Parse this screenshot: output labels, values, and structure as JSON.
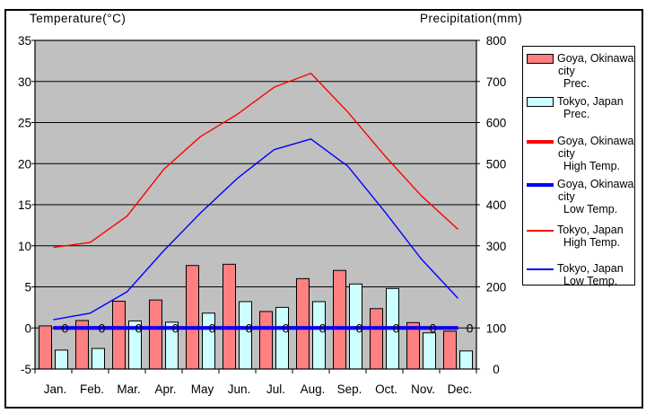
{
  "page": {
    "temp_axis_title": "Temperature(°C)",
    "precip_axis_title": "Precipitation(mm)"
  },
  "colors": {
    "goya_prec_bar": "#FF8080",
    "tokyo_prec_bar": "#CCFFFF",
    "high_temp_line": "#FF0000",
    "low_temp_line": "#0000FF",
    "plot_background": "#C0C0C0",
    "axis_and_text": "#000000",
    "legend_background": "#FFFFFF"
  },
  "legend": {
    "entries": [
      {
        "swatch": "goya-prec-swatch",
        "line1": "Goya, Okinawa",
        "line2": "city",
        "line3": "Prec."
      },
      {
        "swatch": "tokyo-prec-swatch",
        "line1": "Tokyo, Japan",
        "line2": "Prec.",
        "line3": ""
      },
      {
        "swatch": "goya-high-swatch",
        "line1": "Goya, Okinawa",
        "line2": "city",
        "line3": "High Temp."
      },
      {
        "swatch": "goya-low-swatch",
        "line1": "Goya, Okinawa",
        "line2": "city",
        "line3": "Low Temp."
      },
      {
        "swatch": "tokyo-high-swatch",
        "line1": "Tokyo, Japan",
        "line2": "High Temp.",
        "line3": ""
      },
      {
        "swatch": "tokyo-low-swatch",
        "line1": "Tokyo, Japan",
        "line2": "Low Temp.",
        "line3": ""
      }
    ]
  },
  "chart_data": {
    "type": "bar+line combo climate chart",
    "categories": [
      "Jan.",
      "Feb.",
      "Mar.",
      "Apr.",
      "May",
      "Jun.",
      "Jul.",
      "Aug.",
      "Sep.",
      "Oct.",
      "Nov.",
      "Dec."
    ],
    "series": [
      {
        "name": "Goya, Okinawa city Prec.",
        "type": "bar",
        "axis": "precip",
        "color": "#FF8080",
        "values": [
          105,
          118,
          165,
          168,
          252,
          255,
          140,
          220,
          240,
          147,
          113,
          92
        ]
      },
      {
        "name": "Tokyo, Japan Prec.",
        "type": "bar",
        "axis": "precip",
        "color": "#CCFFFF",
        "values": [
          46,
          50,
          117,
          114,
          136,
          164,
          150,
          164,
          207,
          196,
          88,
          44
        ]
      },
      {
        "name": "Goya, Okinawa city High Temp.",
        "type": "line",
        "axis": "temp",
        "color": "#FF0000",
        "thickness": 4,
        "values": [
          0,
          0,
          0,
          0,
          0,
          0,
          0,
          0,
          0,
          0,
          0,
          0
        ],
        "data_labels": false
      },
      {
        "name": "Goya, Okinawa city Low Temp.",
        "type": "line",
        "axis": "temp",
        "color": "#0000FF",
        "thickness": 4,
        "values": [
          0,
          0,
          0,
          0,
          0,
          0,
          0,
          0,
          0,
          0,
          0,
          0
        ],
        "data_labels": true
      },
      {
        "name": "Tokyo, Japan High Temp.",
        "type": "line",
        "axis": "temp",
        "color": "#FF0000",
        "thickness": 1.4,
        "values": [
          9.8,
          10.4,
          13.6,
          19.3,
          23.3,
          26.0,
          29.3,
          31.0,
          26.3,
          21.0,
          16.1,
          12.0
        ],
        "data_labels": false
      },
      {
        "name": "Tokyo, Japan Low Temp.",
        "type": "line",
        "axis": "temp",
        "color": "#0000FF",
        "thickness": 1.4,
        "values": [
          1.0,
          1.8,
          4.4,
          9.4,
          14.0,
          18.2,
          21.7,
          23.0,
          19.7,
          14.2,
          8.4,
          3.6
        ],
        "data_labels": false
      }
    ],
    "temp_axis": {
      "title": "Temperature(°C)",
      "min": -5,
      "max": 35,
      "tick_labels": [
        35,
        30,
        25,
        20,
        15,
        10,
        5,
        0,
        -5
      ]
    },
    "precip_axis": {
      "title": "Precipitation(mm)",
      "min": 0,
      "max": 800,
      "tick_labels": [
        800,
        700,
        600,
        500,
        400,
        300,
        200,
        100,
        0
      ]
    },
    "grid": true,
    "legend_position": "right"
  }
}
